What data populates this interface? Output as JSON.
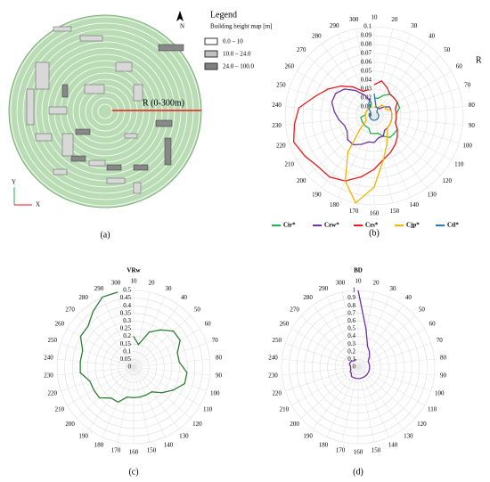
{
  "map_panel": {
    "legend_title": "Legend",
    "legend_subtitle": "Building height map [m]",
    "legend_items": [
      "0.0 – 10",
      "10.0 – 24.0",
      "24.0 – 100.0"
    ],
    "radius_label": "R (0-300m)",
    "north": "N",
    "axis_y": "Y",
    "axis_x": "X",
    "panel_label": "(a)"
  },
  "chart_data": [
    {
      "type": "polar_line",
      "panel_label": "(b)",
      "axis_label": "R",
      "categories": [
        10,
        20,
        30,
        40,
        50,
        60,
        70,
        80,
        90,
        100,
        110,
        120,
        130,
        140,
        150,
        160,
        170,
        180,
        190,
        200,
        210,
        220,
        230,
        240,
        250,
        260,
        270,
        280,
        290,
        300
      ],
      "ylim": [
        0,
        0.1
      ],
      "yticks": [
        0,
        0.01,
        0.02,
        0.03,
        0.04,
        0.05,
        0.06,
        0.07,
        0.08,
        0.09,
        0.1
      ],
      "grid": true,
      "series": [
        {
          "name": "Cir*",
          "color": "#22b14c",
          "values": [
            0.02,
            0.02,
            0.025,
            0.03,
            0.03,
            0.03,
            0.03,
            0.025,
            0.025,
            0.025,
            0.03,
            0.03,
            0.03,
            0.025,
            0.02,
            0.02,
            0.02,
            0.015,
            0.015,
            0.015,
            0.015,
            0.015,
            0.015,
            0.01,
            0.01,
            0.01,
            0.01,
            0.01,
            0.01,
            0.015
          ]
        },
        {
          "name": "Czw*",
          "color": "#7030a0",
          "values": [
            0.01,
            0.01,
            0.01,
            0.01,
            0.015,
            0.02,
            0.02,
            0.02,
            0.02,
            0.02,
            0.02,
            0.02,
            0.02,
            0.025,
            0.025,
            0.03,
            0.03,
            0.035,
            0.04,
            0.04,
            0.035,
            0.035,
            0.04,
            0.045,
            0.05,
            0.05,
            0.045,
            0.035,
            0.025,
            0.015
          ]
        },
        {
          "name": "Czs*",
          "color": "#e8191b",
          "values": [
            0.035,
            0.04,
            0.035,
            0.03,
            0.03,
            0.03,
            0.025,
            0.025,
            0.025,
            0.025,
            0.03,
            0.035,
            0.04,
            0.045,
            0.05,
            0.06,
            0.07,
            0.08,
            0.085,
            0.085,
            0.09,
            0.095,
            0.09,
            0.085,
            0.07,
            0.06,
            0.05,
            0.04,
            0.03,
            0.03
          ]
        },
        {
          "name": "Cjp*",
          "color": "#f0b400",
          "values": [
            0.01,
            0.01,
            0.01,
            0.015,
            0.015,
            0.015,
            0.02,
            0.02,
            0.02,
            0.02,
            0.02,
            0.02,
            0.025,
            0.035,
            0.05,
            0.08,
            0.1,
            0.08,
            0.05,
            0.02,
            0.01,
            0.01,
            0.01,
            0.01,
            0.01,
            0.01,
            0.01,
            0.01,
            0.01,
            0.01
          ]
        },
        {
          "name": "Ctl*",
          "color": "#2e75b6",
          "values": [
            0.025,
            0.01,
            0.01,
            0.005,
            0.005,
            0.005,
            0.005,
            0.005,
            0.005,
            0.005,
            0.005,
            0.005,
            0.005,
            0.005,
            0.005,
            0.005,
            0.005,
            0.005,
            0.005,
            0.005,
            0.005,
            0.005,
            0.005,
            0.005,
            0.005,
            0.005,
            0.005,
            0.01,
            0.015,
            0.02
          ]
        }
      ]
    },
    {
      "type": "polar_line",
      "panel_label": "(c)",
      "title": "VRw",
      "categories": [
        10,
        20,
        30,
        40,
        50,
        60,
        70,
        80,
        90,
        100,
        110,
        120,
        130,
        140,
        150,
        160,
        170,
        180,
        190,
        200,
        210,
        220,
        230,
        240,
        250,
        260,
        270,
        280,
        290,
        300
      ],
      "ylim": [
        0,
        0.5
      ],
      "yticks": [
        0,
        0.05,
        0.1,
        0.15,
        0.2,
        0.25,
        0.3,
        0.35,
        0.4,
        0.45,
        0.5
      ],
      "grid": true,
      "series": [
        {
          "name": "VRw",
          "color": "#2e7d32",
          "values": [
            0.2,
            0.15,
            0.25,
            0.3,
            0.35,
            0.35,
            0.3,
            0.3,
            0.35,
            0.35,
            0.3,
            0.25,
            0.2,
            0.2,
            0.2,
            0.2,
            0.2,
            0.25,
            0.25,
            0.3,
            0.3,
            0.3,
            0.35,
            0.35,
            0.35,
            0.4,
            0.4,
            0.45,
            0.5,
            0.5
          ]
        }
      ]
    },
    {
      "type": "polar_line",
      "panel_label": "(d)",
      "title": "BD",
      "categories": [
        10,
        20,
        30,
        40,
        50,
        60,
        70,
        80,
        90,
        100,
        110,
        120,
        130,
        140,
        150,
        160,
        170,
        180,
        190,
        200,
        210,
        220,
        230,
        240,
        250,
        260,
        270,
        280,
        290,
        300
      ],
      "ylim": [
        0,
        1
      ],
      "yticks": [
        0,
        0.1,
        0.2,
        0.3,
        0.4,
        0.5,
        0.6,
        0.7,
        0.8,
        0.9,
        1
      ],
      "grid": true,
      "series": [
        {
          "name": "BD",
          "color": "#7030a0",
          "values": [
            1,
            0.5,
            0.3,
            0.25,
            0.2,
            0.15,
            0.15,
            0.15,
            0.15,
            0.15,
            0.15,
            0.15,
            0.15,
            0.15,
            0.15,
            0.15,
            0.15,
            0.15,
            0.15,
            0.12,
            0.12,
            0.1,
            0.1,
            0.1,
            0.12,
            0.12,
            0.12,
            0.1,
            0.1,
            0.1
          ]
        }
      ]
    }
  ]
}
